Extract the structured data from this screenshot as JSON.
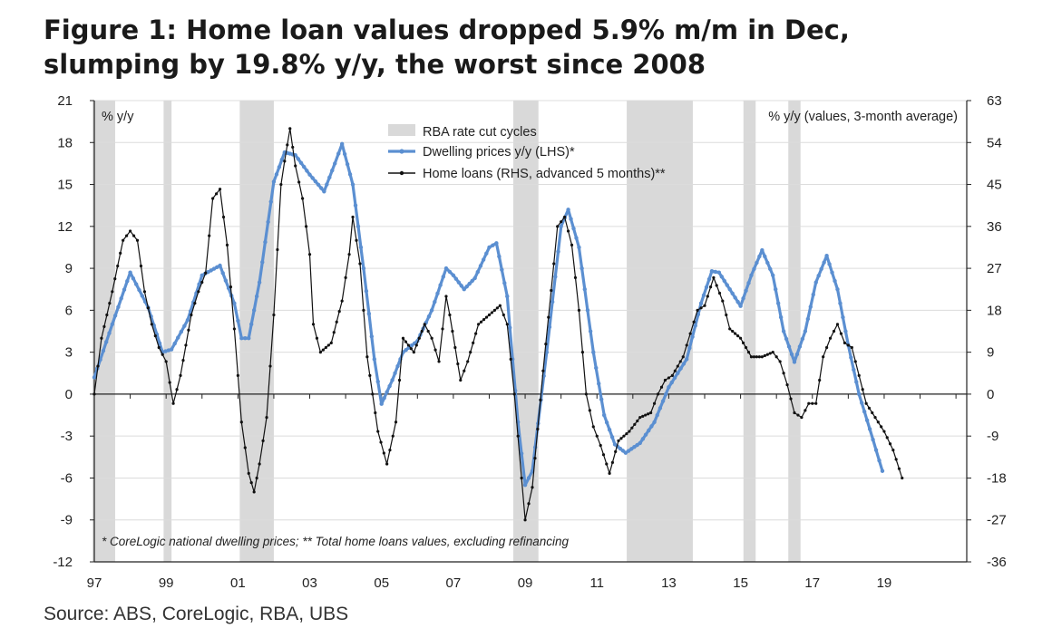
{
  "title_line1": "Figure 1: Home loan values dropped 5.9% m/m in Dec,",
  "title_line2": "slumping by 19.8% y/y, the worst since 2008",
  "source": "Source:  ABS, CoreLogic, RBA, UBS",
  "chart_data": {
    "type": "line",
    "title": "Figure 1: Home loan values dropped 5.9% m/m in Dec, slumping by 19.8% y/y, the worst since 2008",
    "left_axis_label": "% y/y",
    "right_axis_label": "% y/y (values, 3-month average)",
    "footnote": "* CoreLogic national dwelling prices; ** Total home loans values, excluding refinancing",
    "ylim_left": [
      -12,
      21
    ],
    "ylim_right": [
      -36,
      63
    ],
    "xlim": [
      1997,
      2021.3
    ],
    "left_ticks": [
      "21",
      "18",
      "15",
      "12",
      "9",
      "6",
      "3",
      "0",
      "-3",
      "-6",
      "-9",
      "-12"
    ],
    "right_ticks": [
      "63",
      "54",
      "45",
      "36",
      "27",
      "18",
      "9",
      "0",
      "-9",
      "-18",
      "-27",
      "-36"
    ],
    "x_ticks": [
      {
        "v": 1997,
        "label": "97"
      },
      {
        "v": 1999,
        "label": "99"
      },
      {
        "v": 2001,
        "label": "01"
      },
      {
        "v": 2003,
        "label": "03"
      },
      {
        "v": 2005,
        "label": "05"
      },
      {
        "v": 2007,
        "label": "07"
      },
      {
        "v": 2009,
        "label": "09"
      },
      {
        "v": 2011,
        "label": "11"
      },
      {
        "v": 2013,
        "label": "13"
      },
      {
        "v": 2015,
        "label": "15"
      },
      {
        "v": 2017,
        "label": "17"
      },
      {
        "v": 2019,
        "label": "19"
      }
    ],
    "grid": true,
    "legend": [
      {
        "name": "RBA rate cut cycles",
        "kind": "band",
        "color": "#d9d9d9"
      },
      {
        "name": "Dwelling prices y/y (LHS)*",
        "kind": "line",
        "color": "#5b8fd1"
      },
      {
        "name": "Home loans (RHS, advanced 5 months)**",
        "kind": "line",
        "color": "#111111"
      }
    ],
    "rate_cut_bands": [
      [
        1996.95,
        1997.58
      ],
      [
        1998.93,
        1999.15
      ],
      [
        2001.05,
        2002.0
      ],
      [
        2008.67,
        2009.37
      ],
      [
        2011.83,
        2013.67
      ],
      [
        2015.08,
        2015.42
      ],
      [
        2016.33,
        2016.67
      ]
    ],
    "series": [
      {
        "name": "Dwelling prices y/y (LHS)*",
        "axis": "left",
        "color": "#5b8fd1",
        "points": [
          [
            1997.0,
            1.2
          ],
          [
            1997.5,
            5.0
          ],
          [
            1998.0,
            8.7
          ],
          [
            1998.5,
            6.2
          ],
          [
            1998.9,
            3.0
          ],
          [
            1999.15,
            3.2
          ],
          [
            1999.6,
            5.3
          ],
          [
            2000.0,
            8.5
          ],
          [
            2000.5,
            9.2
          ],
          [
            2000.9,
            6.5
          ],
          [
            2001.1,
            4.0
          ],
          [
            2001.3,
            4.0
          ],
          [
            2001.6,
            8.0
          ],
          [
            2002.0,
            15.2
          ],
          [
            2002.3,
            17.3
          ],
          [
            2002.6,
            17.1
          ],
          [
            2003.0,
            15.7
          ],
          [
            2003.4,
            14.5
          ],
          [
            2003.7,
            16.5
          ],
          [
            2003.9,
            17.9
          ],
          [
            2004.2,
            15.0
          ],
          [
            2004.5,
            9.0
          ],
          [
            2004.8,
            2.5
          ],
          [
            2005.0,
            -0.7
          ],
          [
            2005.3,
            1.0
          ],
          [
            2005.6,
            3.0
          ],
          [
            2006.0,
            3.8
          ],
          [
            2006.4,
            6.0
          ],
          [
            2006.8,
            9.0
          ],
          [
            2007.0,
            8.5
          ],
          [
            2007.3,
            7.5
          ],
          [
            2007.6,
            8.3
          ],
          [
            2008.0,
            10.5
          ],
          [
            2008.2,
            10.8
          ],
          [
            2008.5,
            7.0
          ],
          [
            2008.8,
            -2.0
          ],
          [
            2009.0,
            -6.5
          ],
          [
            2009.2,
            -5.5
          ],
          [
            2009.6,
            3.0
          ],
          [
            2010.0,
            12.0
          ],
          [
            2010.2,
            13.2
          ],
          [
            2010.5,
            10.5
          ],
          [
            2010.9,
            3.0
          ],
          [
            2011.2,
            -1.5
          ],
          [
            2011.5,
            -3.6
          ],
          [
            2011.8,
            -4.2
          ],
          [
            2012.2,
            -3.5
          ],
          [
            2012.6,
            -2.0
          ],
          [
            2013.0,
            0.5
          ],
          [
            2013.5,
            2.5
          ],
          [
            2013.9,
            6.5
          ],
          [
            2014.2,
            8.8
          ],
          [
            2014.4,
            8.7
          ],
          [
            2014.7,
            7.5
          ],
          [
            2015.0,
            6.3
          ],
          [
            2015.3,
            8.5
          ],
          [
            2015.6,
            10.3
          ],
          [
            2015.9,
            8.5
          ],
          [
            2016.2,
            4.5
          ],
          [
            2016.5,
            2.3
          ],
          [
            2016.8,
            4.5
          ],
          [
            2017.1,
            8.0
          ],
          [
            2017.4,
            9.9
          ],
          [
            2017.7,
            7.5
          ],
          [
            2018.0,
            3.5
          ],
          [
            2018.3,
            0.0
          ],
          [
            2018.6,
            -2.5
          ],
          [
            2018.95,
            -5.5
          ]
        ]
      },
      {
        "name": "Home loans (RHS, advanced 5 months)**",
        "axis": "right",
        "color": "#111111",
        "points": [
          [
            1997.0,
            0
          ],
          [
            1997.2,
            12
          ],
          [
            1997.5,
            22
          ],
          [
            1997.8,
            33
          ],
          [
            1998.0,
            35
          ],
          [
            1998.2,
            33
          ],
          [
            1998.4,
            22
          ],
          [
            1998.6,
            15
          ],
          [
            1998.8,
            10
          ],
          [
            1999.0,
            7
          ],
          [
            1999.2,
            -2
          ],
          [
            1999.4,
            4
          ],
          [
            1999.7,
            17
          ],
          [
            1999.9,
            22
          ],
          [
            2000.1,
            26
          ],
          [
            2000.3,
            42
          ],
          [
            2000.5,
            44
          ],
          [
            2000.7,
            32
          ],
          [
            2000.9,
            14
          ],
          [
            2001.1,
            -6
          ],
          [
            2001.3,
            -17
          ],
          [
            2001.45,
            -21
          ],
          [
            2001.6,
            -15
          ],
          [
            2001.8,
            -5
          ],
          [
            2002.0,
            17
          ],
          [
            2002.2,
            45
          ],
          [
            2002.3,
            50
          ],
          [
            2002.45,
            57
          ],
          [
            2002.6,
            49
          ],
          [
            2002.8,
            42
          ],
          [
            2003.0,
            30
          ],
          [
            2003.1,
            15
          ],
          [
            2003.3,
            9
          ],
          [
            2003.6,
            11
          ],
          [
            2003.9,
            20
          ],
          [
            2004.1,
            30
          ],
          [
            2004.2,
            38
          ],
          [
            2004.4,
            28
          ],
          [
            2004.6,
            8
          ],
          [
            2004.9,
            -8
          ],
          [
            2005.15,
            -15
          ],
          [
            2005.4,
            -6
          ],
          [
            2005.6,
            12
          ],
          [
            2005.9,
            9
          ],
          [
            2006.2,
            15
          ],
          [
            2006.4,
            12
          ],
          [
            2006.6,
            7
          ],
          [
            2006.8,
            21
          ],
          [
            2006.9,
            17
          ],
          [
            2007.2,
            3
          ],
          [
            2007.4,
            7
          ],
          [
            2007.7,
            15
          ],
          [
            2008.0,
            17
          ],
          [
            2008.3,
            19
          ],
          [
            2008.5,
            15
          ],
          [
            2008.7,
            0
          ],
          [
            2008.9,
            -18
          ],
          [
            2009.0,
            -27
          ],
          [
            2009.2,
            -20
          ],
          [
            2009.5,
            5
          ],
          [
            2009.8,
            28
          ],
          [
            2009.9,
            36
          ],
          [
            2010.1,
            38
          ],
          [
            2010.3,
            32
          ],
          [
            2010.5,
            18
          ],
          [
            2010.7,
            0
          ],
          [
            2010.9,
            -7
          ],
          [
            2011.1,
            -11
          ],
          [
            2011.35,
            -17
          ],
          [
            2011.6,
            -10
          ],
          [
            2011.9,
            -8
          ],
          [
            2012.2,
            -5
          ],
          [
            2012.5,
            -4
          ],
          [
            2012.7,
            0
          ],
          [
            2012.9,
            3
          ],
          [
            2013.1,
            4
          ],
          [
            2013.4,
            8
          ],
          [
            2013.6,
            13
          ],
          [
            2013.8,
            18
          ],
          [
            2014.0,
            19
          ],
          [
            2014.25,
            25
          ],
          [
            2014.5,
            20
          ],
          [
            2014.7,
            14
          ],
          [
            2015.0,
            12
          ],
          [
            2015.3,
            8
          ],
          [
            2015.6,
            8
          ],
          [
            2015.9,
            9
          ],
          [
            2016.1,
            7
          ],
          [
            2016.3,
            2
          ],
          [
            2016.5,
            -4
          ],
          [
            2016.7,
            -5
          ],
          [
            2016.9,
            -2
          ],
          [
            2017.1,
            -2
          ],
          [
            2017.3,
            8
          ],
          [
            2017.5,
            12
          ],
          [
            2017.7,
            15
          ],
          [
            2017.9,
            11
          ],
          [
            2018.1,
            10
          ],
          [
            2018.3,
            4
          ],
          [
            2018.5,
            -2
          ],
          [
            2018.75,
            -5
          ],
          [
            2019.0,
            -8
          ],
          [
            2019.25,
            -12
          ],
          [
            2019.5,
            -18
          ]
        ]
      }
    ]
  }
}
